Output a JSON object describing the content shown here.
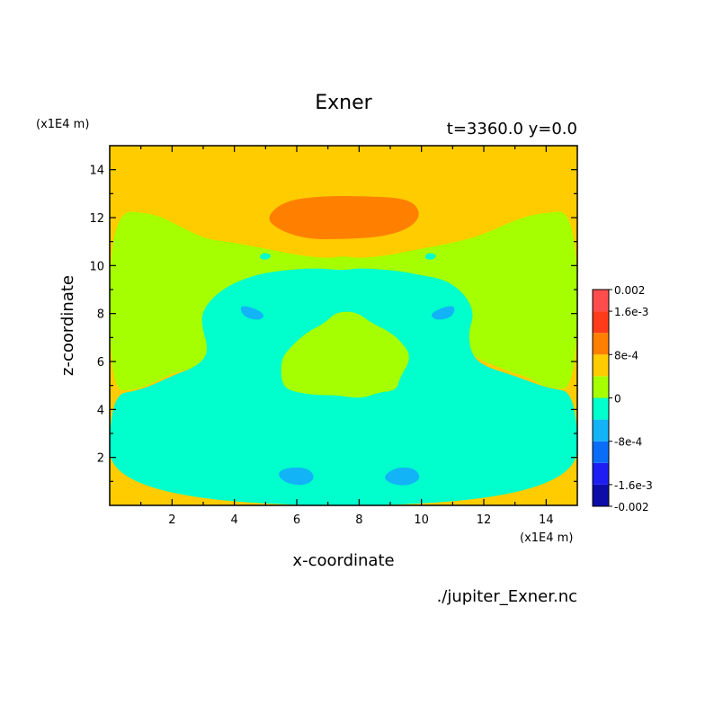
{
  "chart_data": {
    "type": "heatmap",
    "title": "Exner",
    "subtitle": "t=3360.0 y=0.0",
    "xlabel": "x-coordinate",
    "ylabel": "z-coordinate",
    "x_unit": "(x1E4 m)",
    "y_unit": "(x1E4 m)",
    "xlim": [
      0,
      15
    ],
    "ylim": [
      0,
      15
    ],
    "xticks": [
      2,
      4,
      6,
      8,
      10,
      12,
      14
    ],
    "yticks": [
      2,
      4,
      6,
      8,
      10,
      12,
      14
    ],
    "colorbar": {
      "bands": [
        {
          "from": -0.002,
          "to": -0.0016,
          "color": "#0c0ca8"
        },
        {
          "from": -0.0016,
          "to": -0.0012,
          "color": "#1e1ef2"
        },
        {
          "from": -0.0012,
          "to": -0.0008,
          "color": "#0a6df7"
        },
        {
          "from": -0.0008,
          "to": -0.0004,
          "color": "#12b3f7"
        },
        {
          "from": -0.0004,
          "to": 0,
          "color": "#00ffcc"
        },
        {
          "from": 0,
          "to": 0.0004,
          "color": "#a6ff00"
        },
        {
          "from": 0.0004,
          "to": 0.0008,
          "color": "#ffcc00"
        },
        {
          "from": 0.0008,
          "to": 0.0012,
          "color": "#ff8000"
        },
        {
          "from": 0.0012,
          "to": 0.0016,
          "color": "#ff3b1a"
        },
        {
          "from": 0.0016,
          "to": 0.002,
          "color": "#ff4d4d"
        }
      ],
      "tick_labels": [
        {
          "value": 0.002,
          "label": "0.002"
        },
        {
          "value": 0.0016,
          "label": "1.6e-3"
        },
        {
          "value": 0.0008,
          "label": "8e-4"
        },
        {
          "value": 0,
          "label": "0"
        },
        {
          "value": -0.0008,
          "label": "-8e-4"
        },
        {
          "value": -0.0016,
          "label": "-1.6e-3"
        },
        {
          "value": -0.002,
          "label": "-0.002"
        }
      ]
    },
    "regions": [
      {
        "level": 0.0006,
        "color": "#ffcc00",
        "points": [
          [
            0,
            15
          ],
          [
            15,
            15
          ],
          [
            15,
            0
          ],
          [
            0,
            0
          ]
        ]
      },
      {
        "level": 0.0002,
        "color": "#a6ff00",
        "points": [
          [
            0,
            4.8
          ],
          [
            0,
            12.3
          ],
          [
            1.4,
            12.2
          ],
          [
            2.3,
            11.6
          ],
          [
            3.1,
            11.1
          ],
          [
            3.8,
            11.0
          ],
          [
            5.0,
            10.7
          ],
          [
            6.2,
            10.4
          ],
          [
            7.0,
            10.3
          ],
          [
            7.5,
            10.4
          ],
          [
            8.0,
            10.3
          ],
          [
            8.8,
            10.4
          ],
          [
            10.0,
            10.7
          ],
          [
            11.2,
            11.0
          ],
          [
            12.0,
            11.3
          ],
          [
            13.0,
            11.9
          ],
          [
            13.8,
            12.2
          ],
          [
            15,
            12.3
          ],
          [
            15,
            4.8
          ],
          [
            14.0,
            4.9
          ],
          [
            13.5,
            5.3
          ],
          [
            12.8,
            5.6
          ],
          [
            12.0,
            6.0
          ],
          [
            11.6,
            6.3
          ],
          [
            10.6,
            7.0
          ],
          [
            10.0,
            7.8
          ],
          [
            9.6,
            8.2
          ],
          [
            9.3,
            8.6
          ],
          [
            9.0,
            8.7
          ],
          [
            8.7,
            8.3
          ],
          [
            8.3,
            7.8
          ],
          [
            7.7,
            7.6
          ],
          [
            7.4,
            7.6
          ],
          [
            6.6,
            7.8
          ],
          [
            6.2,
            8.2
          ],
          [
            5.8,
            8.6
          ],
          [
            5.5,
            8.5
          ],
          [
            5.1,
            8.1
          ],
          [
            4.4,
            7.3
          ],
          [
            3.8,
            6.3
          ],
          [
            3.4,
            6.0
          ],
          [
            2.6,
            5.7
          ],
          [
            2.0,
            5.5
          ],
          [
            1.4,
            5.1
          ],
          [
            0.8,
            4.8
          ]
        ]
      },
      {
        "level": -0.0002,
        "color": "#00ffcc",
        "points": [
          [
            0,
            0
          ],
          [
            15,
            0
          ],
          [
            15,
            4.7
          ],
          [
            14.0,
            4.9
          ],
          [
            13.0,
            5.4
          ],
          [
            12.0,
            5.8
          ],
          [
            11.6,
            6.3
          ],
          [
            11.5,
            7.2
          ],
          [
            11.7,
            8.0
          ],
          [
            11.4,
            8.8
          ],
          [
            10.8,
            9.4
          ],
          [
            10.0,
            9.6
          ],
          [
            9.2,
            9.8
          ],
          [
            8.0,
            9.9
          ],
          [
            7.5,
            9.8
          ],
          [
            6.6,
            9.9
          ],
          [
            5.5,
            9.8
          ],
          [
            4.6,
            9.6
          ],
          [
            3.7,
            9.1
          ],
          [
            3.1,
            8.4
          ],
          [
            2.9,
            7.7
          ],
          [
            3.2,
            6.4
          ],
          [
            2.8,
            5.8
          ],
          [
            2.0,
            5.4
          ],
          [
            1.0,
            4.8
          ],
          [
            0,
            4.6
          ]
        ]
      },
      {
        "level": 0.0002,
        "color": "#a6ff00",
        "points": [
          [
            5.5,
            6.1
          ],
          [
            5.8,
            6.6
          ],
          [
            6.3,
            7.2
          ],
          [
            6.9,
            7.6
          ],
          [
            7.2,
            8.0
          ],
          [
            7.6,
            8.1
          ],
          [
            8.0,
            8.0
          ],
          [
            8.4,
            7.6
          ],
          [
            8.9,
            7.3
          ],
          [
            9.3,
            6.9
          ],
          [
            9.7,
            6.2
          ],
          [
            9.3,
            5.3
          ],
          [
            9.2,
            4.8
          ],
          [
            8.6,
            4.7
          ],
          [
            8.2,
            4.5
          ],
          [
            7.7,
            4.5
          ],
          [
            7.3,
            4.6
          ],
          [
            6.5,
            4.6
          ],
          [
            5.7,
            4.8
          ],
          [
            5.5,
            5.2
          ]
        ]
      },
      {
        "level": 0.001,
        "color": "#ff8000",
        "points": [
          [
            5.0,
            12.0
          ],
          [
            5.6,
            12.7
          ],
          [
            6.8,
            12.9
          ],
          [
            8.2,
            12.9
          ],
          [
            9.6,
            12.8
          ],
          [
            10.0,
            12.2
          ],
          [
            9.7,
            11.6
          ],
          [
            8.8,
            11.2
          ],
          [
            7.5,
            11.1
          ],
          [
            6.3,
            11.1
          ],
          [
            5.4,
            11.5
          ]
        ]
      },
      {
        "level": -0.0006,
        "color": "#12b3f7",
        "points": [
          [
            4.15,
            8.35
          ],
          [
            4.6,
            8.25
          ],
          [
            5.0,
            7.95
          ],
          [
            4.8,
            7.7
          ],
          [
            4.3,
            7.85
          ]
        ]
      },
      {
        "level": -0.0006,
        "color": "#12b3f7",
        "points": [
          [
            10.25,
            7.95
          ],
          [
            10.65,
            8.25
          ],
          [
            11.1,
            8.35
          ],
          [
            11.0,
            7.85
          ],
          [
            10.5,
            7.7
          ]
        ]
      },
      {
        "level": -0.0006,
        "color": "#12b3f7",
        "points": [
          [
            5.35,
            1.35
          ],
          [
            5.75,
            1.6
          ],
          [
            6.4,
            1.55
          ],
          [
            6.6,
            1.1
          ],
          [
            6.2,
            0.8
          ],
          [
            5.6,
            0.95
          ]
        ]
      },
      {
        "level": -0.0006,
        "color": "#12b3f7",
        "points": [
          [
            8.75,
            1.2
          ],
          [
            9.2,
            1.6
          ],
          [
            9.8,
            1.55
          ],
          [
            10.0,
            1.1
          ],
          [
            9.55,
            0.8
          ],
          [
            9.0,
            0.9
          ]
        ]
      },
      {
        "level": -0.0002,
        "color": "#00ffcc",
        "points": [
          [
            4.8,
            10.4
          ],
          [
            4.95,
            10.55
          ],
          [
            5.2,
            10.45
          ],
          [
            5.1,
            10.25
          ],
          [
            4.85,
            10.25
          ]
        ]
      },
      {
        "level": -0.0002,
        "color": "#00ffcc",
        "points": [
          [
            10.1,
            10.4
          ],
          [
            10.25,
            10.55
          ],
          [
            10.5,
            10.45
          ],
          [
            10.4,
            10.25
          ],
          [
            10.15,
            10.25
          ]
        ]
      }
    ]
  },
  "footer": {
    "filename": "./jupiter_Exner.nc"
  }
}
